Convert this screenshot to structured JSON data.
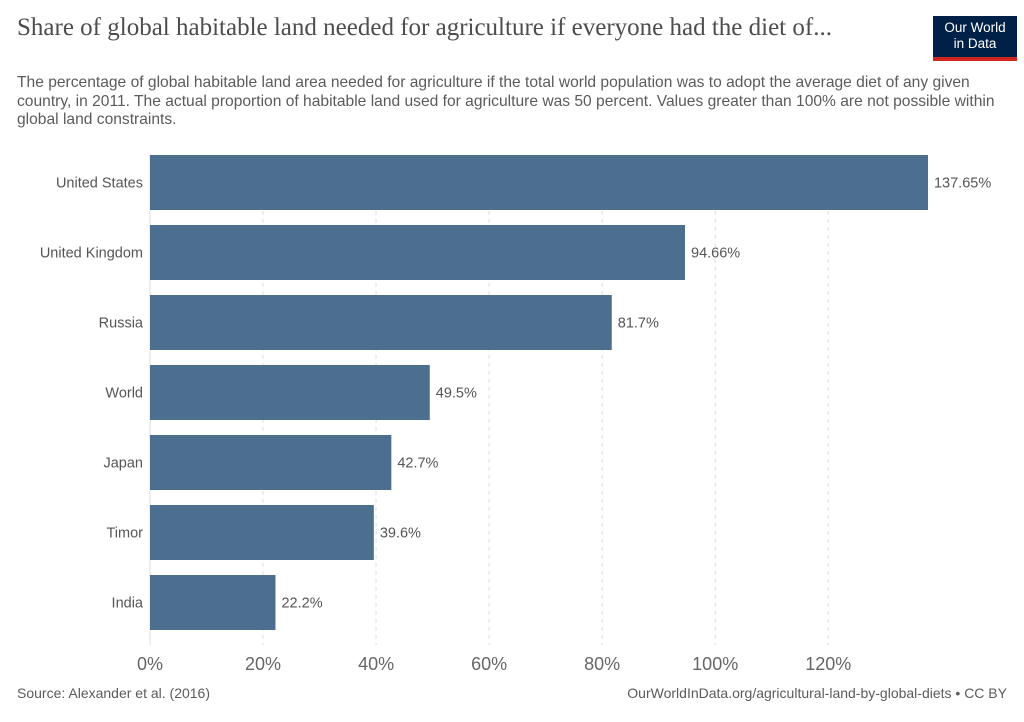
{
  "header": {
    "title": "Share of global habitable land needed for agriculture if everyone had the diet of...",
    "subtitle": "The percentage of global habitable land area needed for agriculture if the total world population was to adopt the average diet of any given country, in 2011. The actual proportion of habitable land used for agriculture was 50 percent. Values greater than 100% are not possible within global land constraints.",
    "logo_line1": "Our World",
    "logo_line2": "in Data"
  },
  "footer": {
    "source": "Source: Alexander et al. (2016)",
    "url": "OurWorldInData.org/agricultural-land-by-global-diets • CC BY"
  },
  "colors": {
    "bar": "#4c6f8f",
    "logo_bg": "#002147",
    "logo_accent": "#ce261e"
  },
  "chart_data": {
    "type": "bar",
    "orientation": "horizontal",
    "categories": [
      "United States",
      "United Kingdom",
      "Russia",
      "World",
      "Japan",
      "Timor",
      "India"
    ],
    "values": [
      137.65,
      94.66,
      81.7,
      49.5,
      42.7,
      39.6,
      22.2
    ],
    "value_labels": [
      "137.65%",
      "94.66%",
      "81.7%",
      "49.5%",
      "42.7%",
      "39.6%",
      "22.2%"
    ],
    "xticks": [
      0,
      20,
      40,
      60,
      80,
      100,
      120
    ],
    "xtick_labels": [
      "0%",
      "20%",
      "40%",
      "60%",
      "80%",
      "100%",
      "120%"
    ],
    "xlim": [
      0,
      137.65
    ],
    "grid": true
  }
}
